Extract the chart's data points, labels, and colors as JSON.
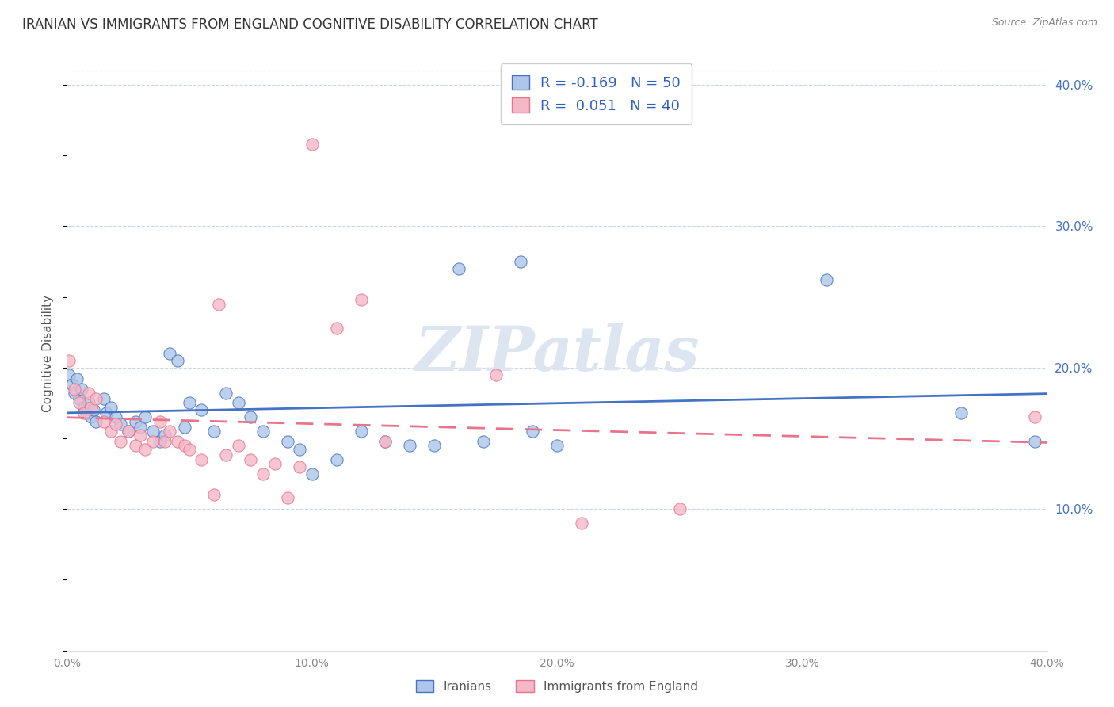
{
  "title": "IRANIAN VS IMMIGRANTS FROM ENGLAND COGNITIVE DISABILITY CORRELATION CHART",
  "source": "Source: ZipAtlas.com",
  "ylabel": "Cognitive Disability",
  "watermark": "ZIPatlas",
  "legend": {
    "iranian": {
      "R": "-0.169",
      "N": "50",
      "color": "#aec6e8"
    },
    "england": {
      "R": "0.051",
      "N": "40",
      "color": "#f4b8c8"
    }
  },
  "xmin": 0.0,
  "xmax": 0.4,
  "ymin": 0.0,
  "ymax": 0.42,
  "yticks": [
    0.1,
    0.2,
    0.3,
    0.4
  ],
  "ytick_labels": [
    "10.0%",
    "20.0%",
    "30.0%",
    "40.0%"
  ],
  "xtick_positions": [
    0.0,
    0.1,
    0.2,
    0.3,
    0.4
  ],
  "xtick_labels": [
    "0.0%",
    "10.0%",
    "20.0%",
    "30.0%",
    "40.0%"
  ],
  "iranian_scatter": [
    [
      0.001,
      0.195
    ],
    [
      0.002,
      0.188
    ],
    [
      0.003,
      0.182
    ],
    [
      0.004,
      0.192
    ],
    [
      0.005,
      0.178
    ],
    [
      0.006,
      0.185
    ],
    [
      0.007,
      0.172
    ],
    [
      0.008,
      0.168
    ],
    [
      0.009,
      0.175
    ],
    [
      0.01,
      0.165
    ],
    [
      0.011,
      0.17
    ],
    [
      0.012,
      0.162
    ],
    [
      0.015,
      0.178
    ],
    [
      0.016,
      0.168
    ],
    [
      0.018,
      0.172
    ],
    [
      0.02,
      0.165
    ],
    [
      0.022,
      0.16
    ],
    [
      0.025,
      0.155
    ],
    [
      0.028,
      0.162
    ],
    [
      0.03,
      0.158
    ],
    [
      0.032,
      0.165
    ],
    [
      0.035,
      0.155
    ],
    [
      0.038,
      0.148
    ],
    [
      0.04,
      0.152
    ],
    [
      0.042,
      0.21
    ],
    [
      0.045,
      0.205
    ],
    [
      0.048,
      0.158
    ],
    [
      0.05,
      0.175
    ],
    [
      0.055,
      0.17
    ],
    [
      0.06,
      0.155
    ],
    [
      0.065,
      0.182
    ],
    [
      0.07,
      0.175
    ],
    [
      0.075,
      0.165
    ],
    [
      0.08,
      0.155
    ],
    [
      0.09,
      0.148
    ],
    [
      0.095,
      0.142
    ],
    [
      0.1,
      0.125
    ],
    [
      0.11,
      0.135
    ],
    [
      0.12,
      0.155
    ],
    [
      0.13,
      0.148
    ],
    [
      0.14,
      0.145
    ],
    [
      0.15,
      0.145
    ],
    [
      0.16,
      0.27
    ],
    [
      0.17,
      0.148
    ],
    [
      0.185,
      0.275
    ],
    [
      0.19,
      0.155
    ],
    [
      0.2,
      0.145
    ],
    [
      0.31,
      0.262
    ],
    [
      0.365,
      0.168
    ],
    [
      0.395,
      0.148
    ]
  ],
  "england_scatter": [
    [
      0.001,
      0.205
    ],
    [
      0.003,
      0.185
    ],
    [
      0.005,
      0.175
    ],
    [
      0.007,
      0.168
    ],
    [
      0.009,
      0.182
    ],
    [
      0.01,
      0.172
    ],
    [
      0.012,
      0.178
    ],
    [
      0.015,
      0.162
    ],
    [
      0.018,
      0.155
    ],
    [
      0.02,
      0.16
    ],
    [
      0.022,
      0.148
    ],
    [
      0.025,
      0.155
    ],
    [
      0.028,
      0.145
    ],
    [
      0.03,
      0.152
    ],
    [
      0.032,
      0.142
    ],
    [
      0.035,
      0.148
    ],
    [
      0.038,
      0.162
    ],
    [
      0.04,
      0.148
    ],
    [
      0.042,
      0.155
    ],
    [
      0.045,
      0.148
    ],
    [
      0.048,
      0.145
    ],
    [
      0.05,
      0.142
    ],
    [
      0.055,
      0.135
    ],
    [
      0.06,
      0.11
    ],
    [
      0.062,
      0.245
    ],
    [
      0.065,
      0.138
    ],
    [
      0.07,
      0.145
    ],
    [
      0.075,
      0.135
    ],
    [
      0.08,
      0.125
    ],
    [
      0.085,
      0.132
    ],
    [
      0.09,
      0.108
    ],
    [
      0.095,
      0.13
    ],
    [
      0.1,
      0.358
    ],
    [
      0.11,
      0.228
    ],
    [
      0.12,
      0.248
    ],
    [
      0.13,
      0.148
    ],
    [
      0.175,
      0.195
    ],
    [
      0.21,
      0.09
    ],
    [
      0.25,
      0.1
    ],
    [
      0.395,
      0.165
    ]
  ],
  "iranian_line_color": "#4472c4",
  "england_line_color": "#e8748a",
  "dot_color_iranian": "#aec6e8",
  "dot_color_england": "#f4b8c8",
  "background_color": "#ffffff",
  "grid_color": "#c8d4e8",
  "title_color": "#333333",
  "right_axis_color": "#4472c4",
  "watermark_color": "#dde6f0"
}
